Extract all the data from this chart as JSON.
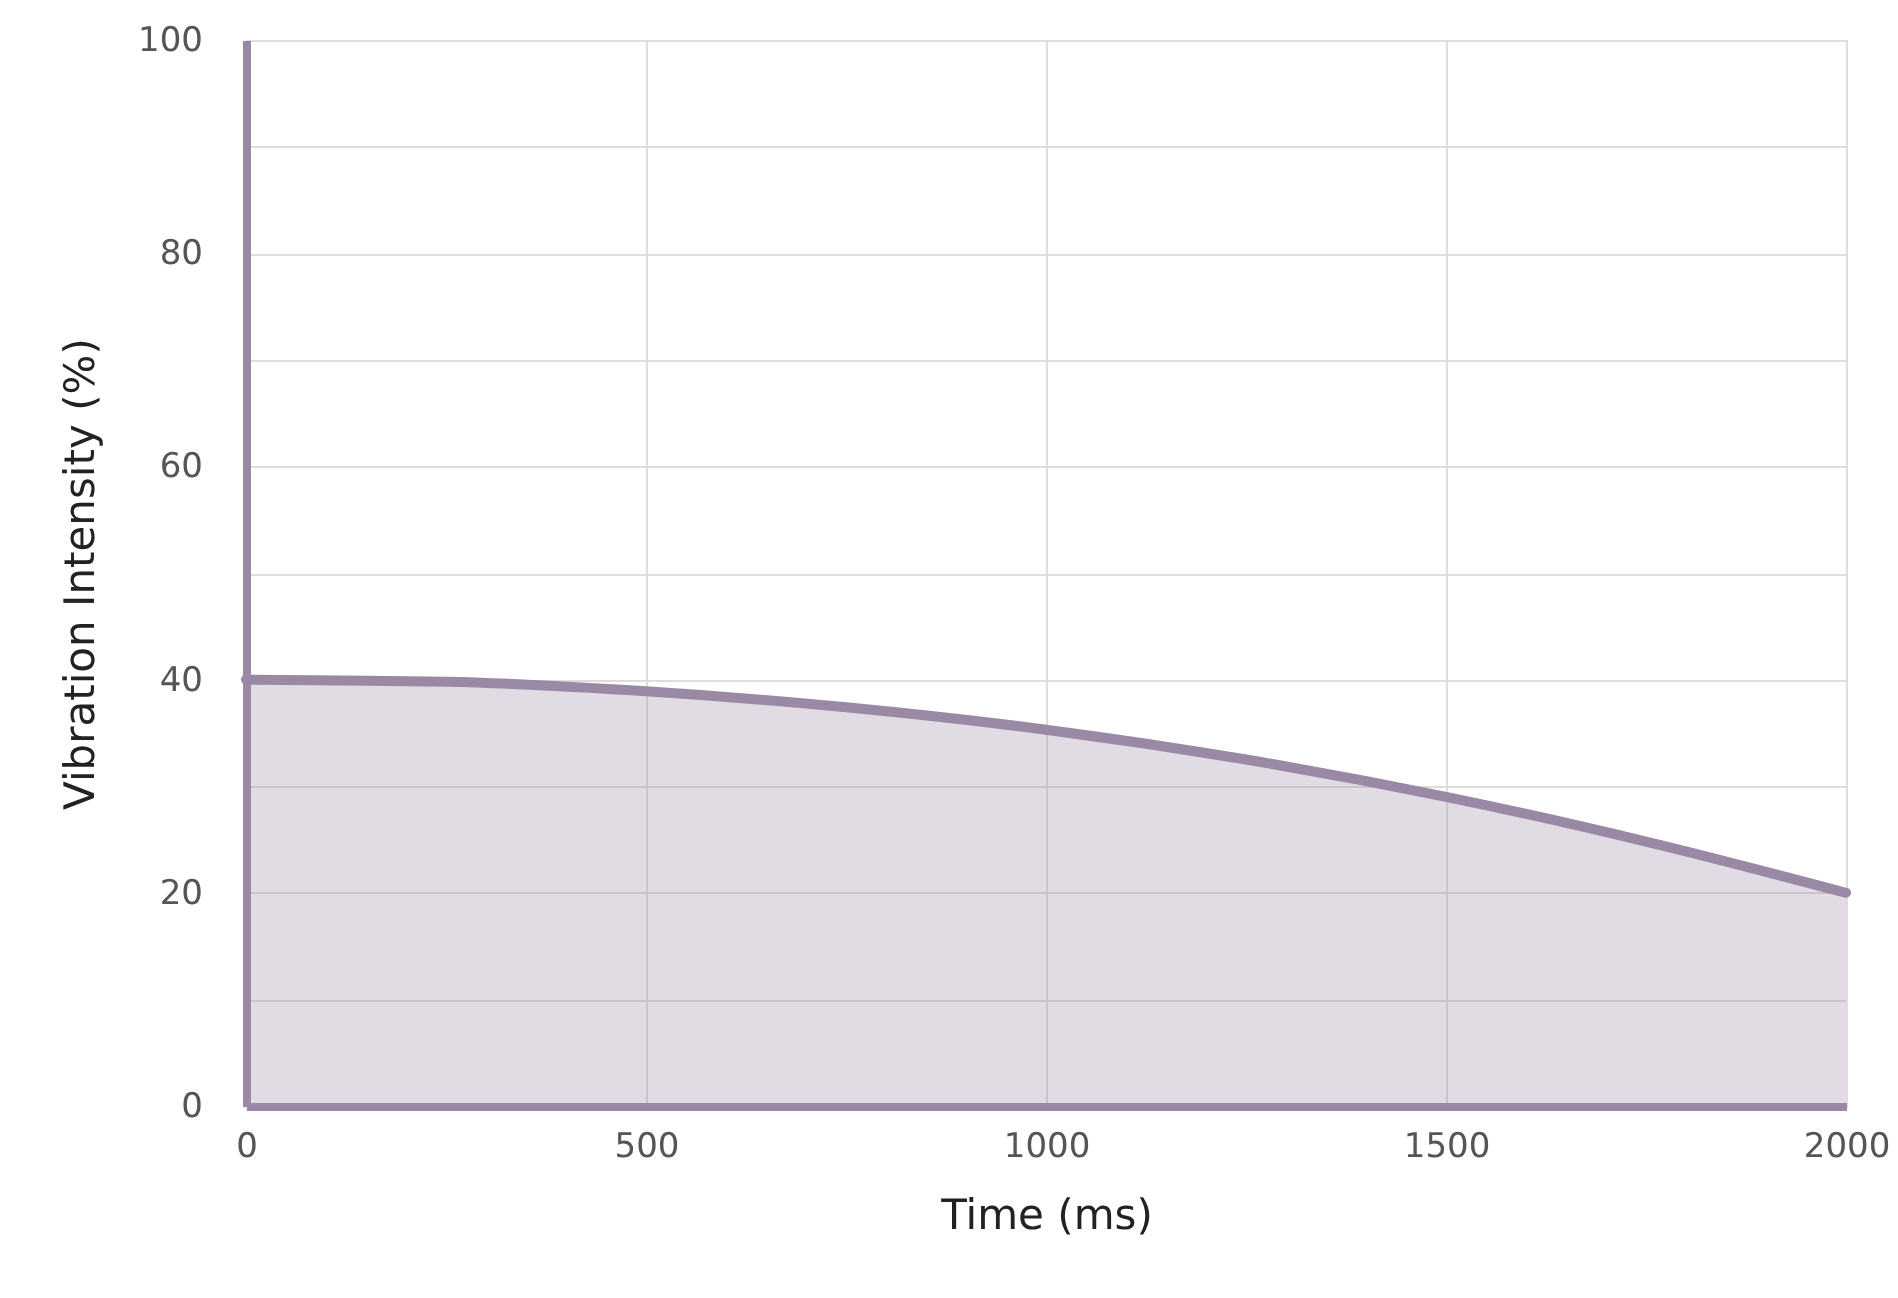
{
  "chart_data": {
    "type": "area",
    "xlabel": "Time (ms)",
    "ylabel": "Vibration Intensity (%)",
    "x": [
      0,
      250,
      500,
      750,
      1000,
      1250,
      1500,
      1750,
      2000
    ],
    "series": [
      {
        "color": "#9a89a5",
        "values": [
          40,
          39.8,
          38.9,
          37.4,
          35.3,
          32.5,
          29.0,
          24.8,
          20.0
        ]
      }
    ],
    "xlim": [
      0,
      2000
    ],
    "xticks": [
      0,
      500,
      1000,
      1500,
      2000
    ],
    "ylim": [
      0,
      100
    ],
    "yticks": [
      0,
      {
        "value": 10,
        "label": null
      },
      20,
      {
        "value": 30,
        "label": null
      },
      40,
      {
        "value": 50,
        "label": null
      },
      60,
      {
        "value": 70,
        "label": null
      },
      80,
      {
        "value": 90,
        "label": null
      },
      100
    ],
    "grid": true,
    "marker": "none",
    "line_style": "solid"
  }
}
